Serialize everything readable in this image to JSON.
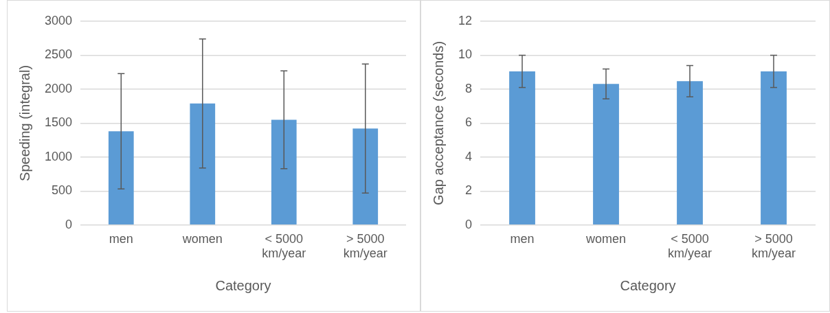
{
  "chart_data": [
    {
      "type": "bar",
      "xlabel": "Category",
      "ylabel": "Speeding (integral)",
      "categories": [
        "men",
        "women",
        "< 5000 km/year",
        "> 5000 km/year"
      ],
      "values": [
        1380,
        1790,
        1550,
        1420
      ],
      "errors": [
        850,
        950,
        720,
        950
      ],
      "color": "#5b9bd5",
      "ylim": [
        0,
        3000
      ],
      "yticks": [
        0,
        500,
        1000,
        1500,
        2000,
        2500,
        3000
      ],
      "grid": "y",
      "legend": false
    },
    {
      "type": "bar",
      "xlabel": "Category",
      "ylabel": "Gap acceptance (seconds)",
      "categories": [
        "men",
        "women",
        "< 5000 km/year",
        "> 5000 km/year"
      ],
      "values": [
        9.05,
        8.31,
        8.47,
        9.05
      ],
      "errors": [
        0.95,
        0.88,
        0.92,
        0.95
      ],
      "color": "#5b9bd5",
      "ylim": [
        0,
        12
      ],
      "yticks": [
        0,
        2,
        4,
        6,
        8,
        10,
        12
      ],
      "grid": "y",
      "legend": false
    }
  ]
}
